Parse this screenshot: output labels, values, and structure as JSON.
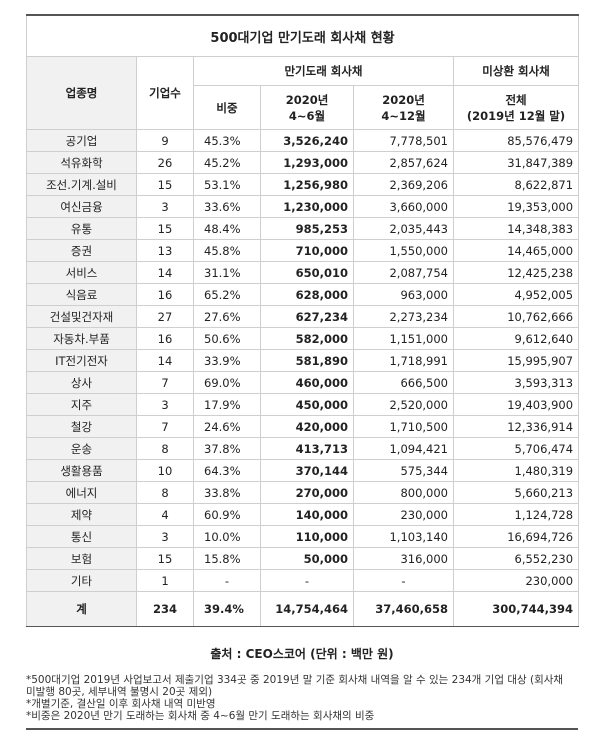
{
  "title": "500대기업 만기도래 회사채 현황",
  "table": {
    "headers": {
      "name": "업종명",
      "count": "기업수",
      "maturing": "만기도래 회사채",
      "outstanding": "미상환 회사채",
      "share": "비중",
      "q2": [
        "2020년",
        "4~6월"
      ],
      "q2q4": [
        "2020년",
        "4~12월"
      ],
      "total": [
        "전체",
        "(2019년 12월 말)"
      ]
    },
    "rows": [
      [
        "공기업",
        "9",
        "45.3%",
        "3,526,240",
        "7,778,501",
        "85,576,479"
      ],
      [
        "석유화학",
        "26",
        "45.2%",
        "1,293,000",
        "2,857,624",
        "31,847,389"
      ],
      [
        "조선.기계.설비",
        "15",
        "53.1%",
        "1,256,980",
        "2,369,206",
        "8,622,871"
      ],
      [
        "여신금융",
        "3",
        "33.6%",
        "1,230,000",
        "3,660,000",
        "19,353,000"
      ],
      [
        "유통",
        "15",
        "48.4%",
        "985,253",
        "2,035,443",
        "14,348,383"
      ],
      [
        "증권",
        "13",
        "45.8%",
        "710,000",
        "1,550,000",
        "14,465,000"
      ],
      [
        "서비스",
        "14",
        "31.1%",
        "650,010",
        "2,087,754",
        "12,425,238"
      ],
      [
        "식음료",
        "16",
        "65.2%",
        "628,000",
        "963,000",
        "4,952,005"
      ],
      [
        "건설및건자재",
        "27",
        "27.6%",
        "627,234",
        "2,273,234",
        "10,762,666"
      ],
      [
        "자동차.부품",
        "16",
        "50.6%",
        "582,000",
        "1,151,000",
        "9,612,640"
      ],
      [
        "IT전기전자",
        "14",
        "33.9%",
        "581,890",
        "1,718,991",
        "15,995,907"
      ],
      [
        "상사",
        "7",
        "69.0%",
        "460,000",
        "666,500",
        "3,593,313"
      ],
      [
        "지주",
        "3",
        "17.9%",
        "450,000",
        "2,520,000",
        "19,403,900"
      ],
      [
        "철강",
        "7",
        "24.6%",
        "420,000",
        "1,710,500",
        "12,336,914"
      ],
      [
        "운송",
        "8",
        "37.8%",
        "413,713",
        "1,094,421",
        "5,706,474"
      ],
      [
        "생활용품",
        "10",
        "64.3%",
        "370,144",
        "575,344",
        "1,480,319"
      ],
      [
        "에너지",
        "8",
        "33.8%",
        "270,000",
        "800,000",
        "5,660,213"
      ],
      [
        "제약",
        "4",
        "60.9%",
        "140,000",
        "230,000",
        "1,124,728"
      ],
      [
        "통신",
        "3",
        "10.0%",
        "110,000",
        "1,103,140",
        "16,694,726"
      ],
      [
        "보험",
        "15",
        "15.8%",
        "50,000",
        "316,000",
        "6,552,230"
      ],
      [
        "기타",
        "1",
        "-",
        "-",
        "-",
        "230,000"
      ]
    ],
    "total": [
      "계",
      "234",
      "39.4%",
      "14,754,464",
      "37,460,658",
      "300,744,394"
    ]
  },
  "source": "출처 : CEO스코어 (단위 : 백만 원)",
  "notes": [
    "*500대기업 2019년 사업보고서 제출기업 334곳 중 2019년 말 기준 회사채 내역을 알 수 있는 234개 기업 대상 (회사채 미발행 80곳, 세부내역 불명시 20곳 제외)",
    "*개별기준, 결산일 이후 회사채 내역 미반영",
    "*비중은 2020년 만기 도래하는 회사채 중 4~6월 만기 도래하는 회사채의 비중"
  ]
}
